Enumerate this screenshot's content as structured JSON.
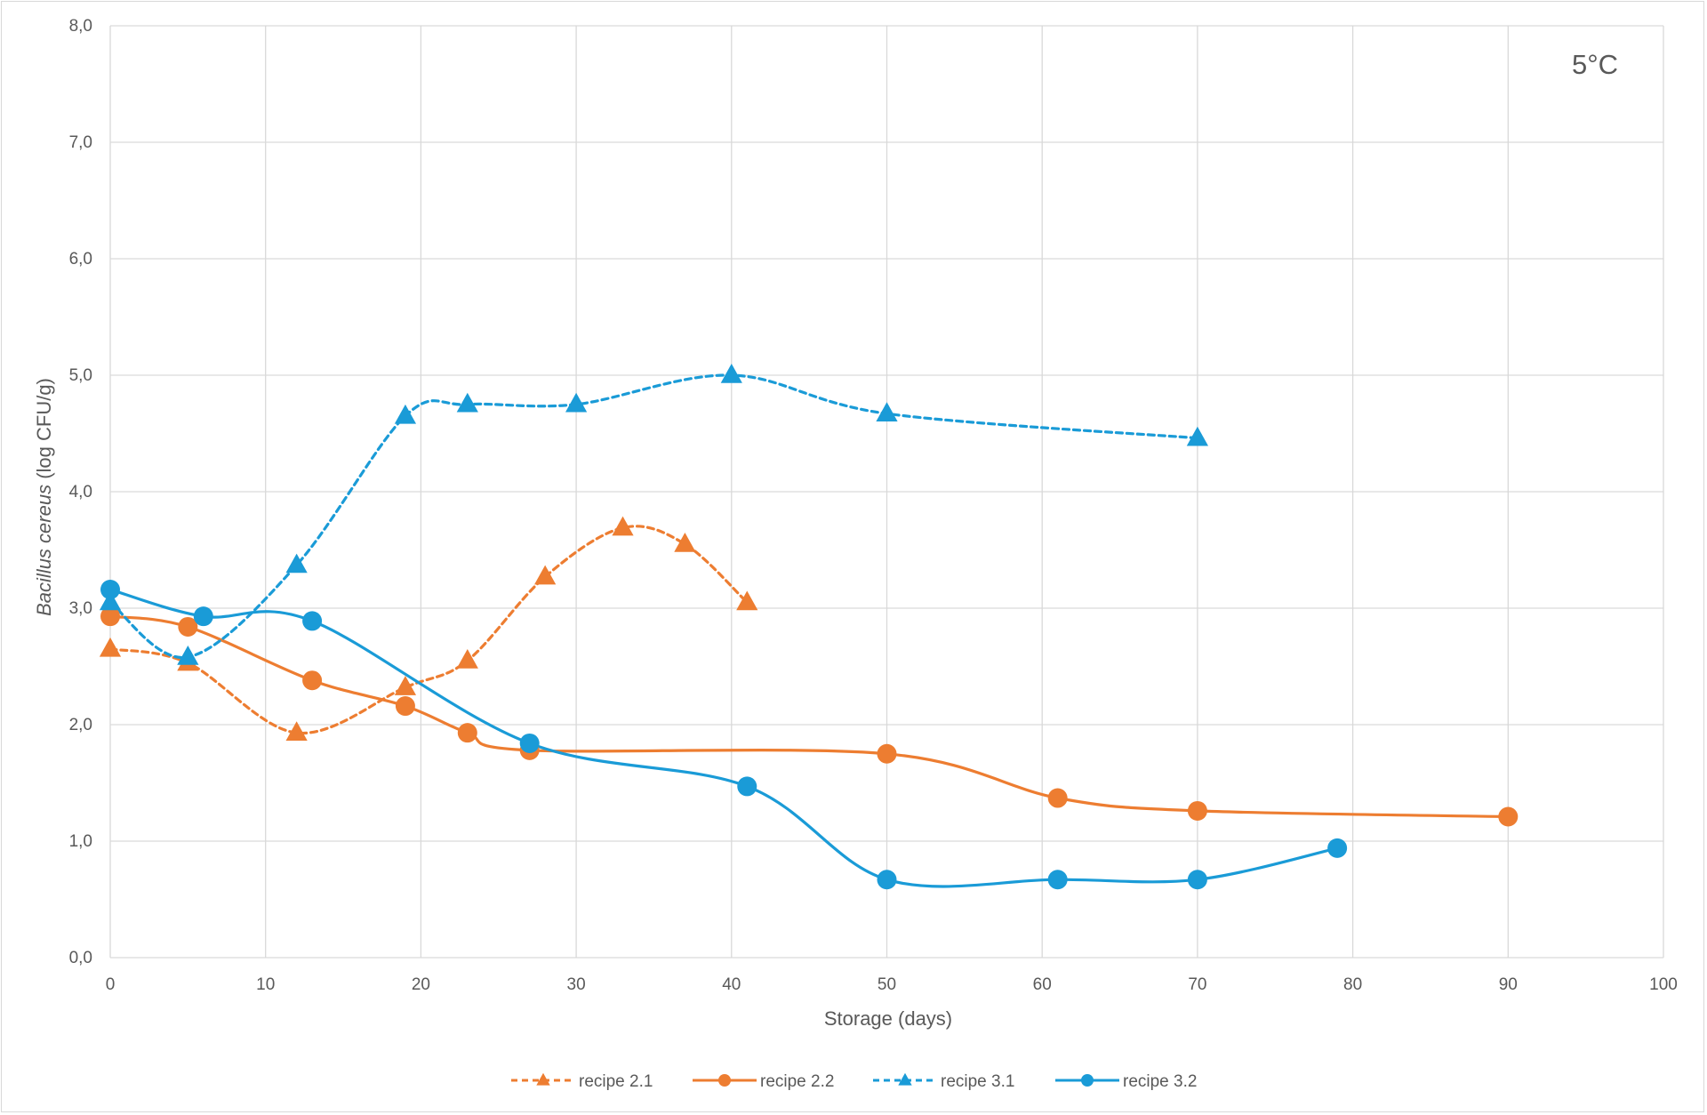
{
  "chart_data": {
    "type": "line",
    "title": "",
    "annotation": "5°C",
    "xlabel": "Storage (days)",
    "ylabel_italic": "Bacillus cereus",
    "ylabel_rest": " (log CFU/g)",
    "xlim": [
      0,
      100
    ],
    "ylim": [
      0,
      8
    ],
    "x_ticks": [
      "0",
      "10",
      "20",
      "30",
      "40",
      "50",
      "60",
      "70",
      "80",
      "90",
      "100"
    ],
    "y_ticks": [
      "0,0",
      "1,0",
      "2,0",
      "3,0",
      "4,0",
      "5,0",
      "6,0",
      "7,0",
      "8,0"
    ],
    "grid": true,
    "legend_position": "bottom",
    "series": [
      {
        "name": "recipe 2.1",
        "color": "#ED7D31",
        "line_style": "dashed",
        "marker": "triangle",
        "x": [
          0,
          5,
          12,
          19,
          23,
          28,
          33,
          37,
          41
        ],
        "y": [
          2.65,
          2.53,
          1.93,
          2.32,
          2.55,
          3.27,
          3.69,
          3.55,
          3.05
        ]
      },
      {
        "name": "recipe 2.2",
        "color": "#ED7D31",
        "line_style": "solid",
        "marker": "circle",
        "x": [
          0,
          5,
          13,
          19,
          23,
          27,
          50,
          61,
          70,
          90
        ],
        "y": [
          2.93,
          2.84,
          2.38,
          2.16,
          1.93,
          1.78,
          1.75,
          1.37,
          1.26,
          1.21
        ]
      },
      {
        "name": "recipe 3.1",
        "color": "#1A9BD7",
        "line_style": "dashed",
        "marker": "triangle",
        "x": [
          0,
          5,
          12,
          19,
          23,
          30,
          40,
          50,
          70
        ],
        "y": [
          3.05,
          2.58,
          3.37,
          4.65,
          4.75,
          4.75,
          5.0,
          4.67,
          4.46
        ]
      },
      {
        "name": "recipe 3.2",
        "color": "#1A9BD7",
        "line_style": "solid",
        "marker": "circle",
        "x": [
          0,
          6,
          13,
          27,
          41,
          50,
          61,
          70,
          79
        ],
        "y": [
          3.16,
          2.93,
          2.89,
          1.84,
          1.47,
          0.67,
          0.67,
          0.67,
          0.94
        ]
      }
    ]
  }
}
